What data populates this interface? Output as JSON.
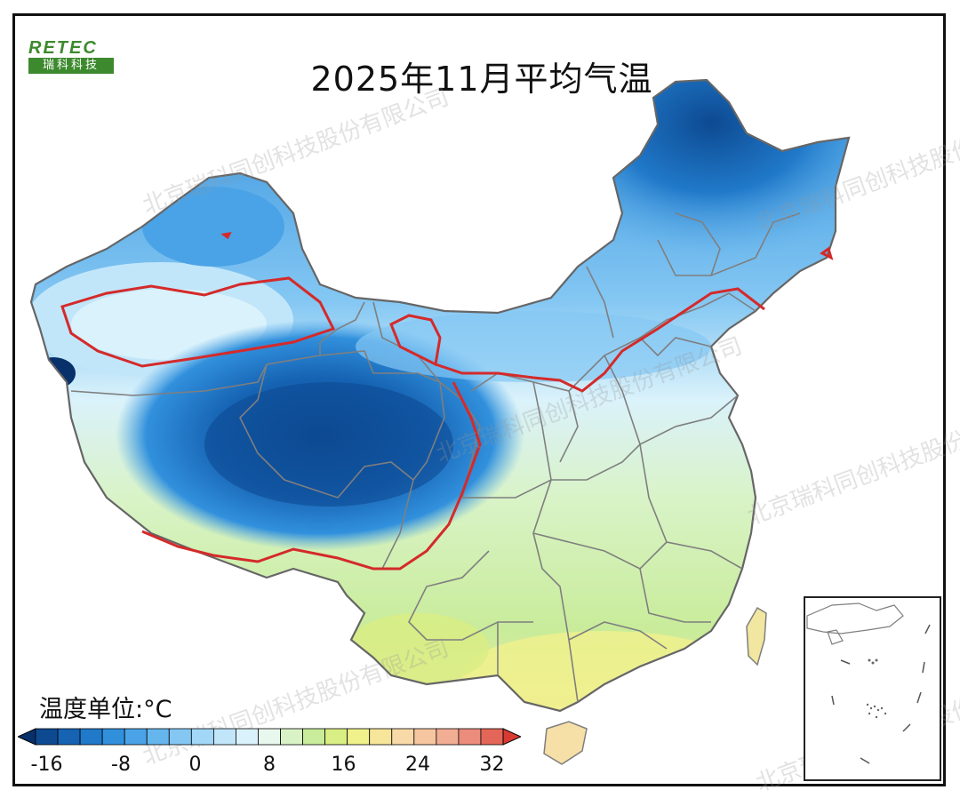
{
  "title": "2025年11月平均气温",
  "logo": {
    "top_text": "RETEC",
    "bottom_text": "瑞科科技"
  },
  "legend": {
    "unit_label": "温度单位:°C",
    "ticks": [
      "-16",
      "-8",
      "0",
      "8",
      "16",
      "24",
      "32"
    ],
    "colors": [
      "#08306b",
      "#0d4a92",
      "#1663b3",
      "#2079c9",
      "#3190dc",
      "#4aa3e6",
      "#66b6ee",
      "#84c7f3",
      "#a3d7f7",
      "#c1e6fa",
      "#daf2fb",
      "#e9f8ee",
      "#d9f3c7",
      "#c8ec9a",
      "#d9ee83",
      "#f1f18c",
      "#f7e59a",
      "#f8d9a8",
      "#f6c6a0",
      "#f2ae92",
      "#ec8c7c",
      "#e46658",
      "#d93a32"
    ]
  },
  "watermark": "北京瑞科同创科技股份有限公司",
  "colors": {
    "cold_dark": "#0d4a92",
    "cold_mid": "#4aa3e6",
    "cold_light": "#c1e6fa",
    "warm_light": "#d9f3c7",
    "warm": "#f1f18c",
    "contour": "#d42a2a",
    "border": "#7f7f7f"
  }
}
